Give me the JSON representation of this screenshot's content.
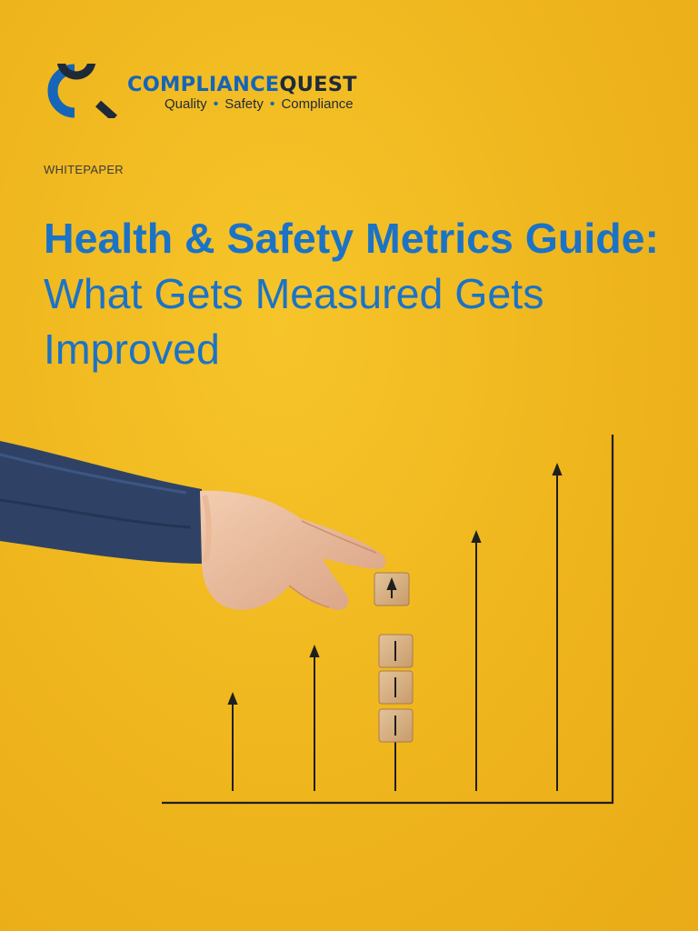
{
  "logo": {
    "brand_part1": "COMPLIANCE",
    "brand_part2": "QUEST",
    "tagline": [
      "Quality",
      "Safety",
      "Compliance"
    ],
    "separator": "•",
    "mark_color": "#1565b8",
    "mark_dark": "#1e2a3a"
  },
  "header": {
    "kicker": "WHITEPAPER"
  },
  "title": {
    "bold_part": "Health & Safety Metrics Guide:",
    "light_part": "What Gets Measured Gets Improved",
    "color": "#1b73c6"
  },
  "illustration": {
    "icons": [
      "upward-arrow-icon",
      "wooden-block-icon",
      "hand-icon"
    ],
    "background_color": "#f1b920"
  }
}
